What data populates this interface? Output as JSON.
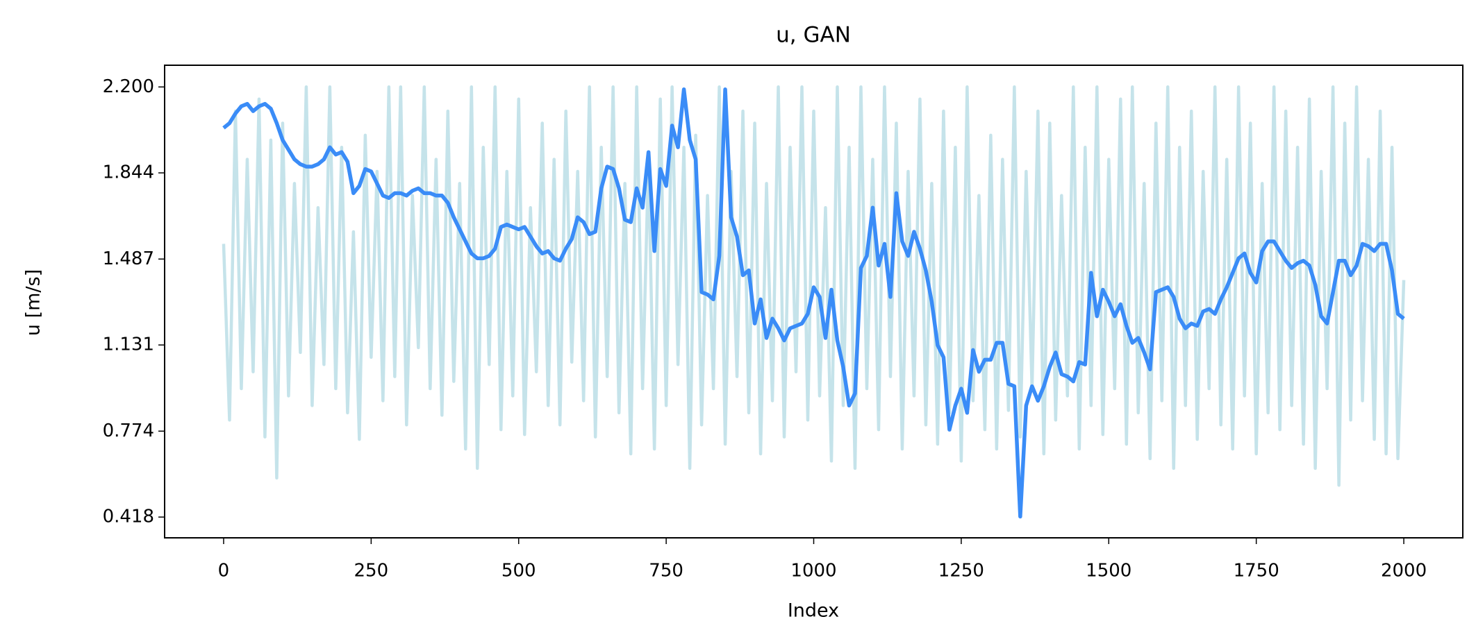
{
  "chart_data": {
    "type": "line",
    "title": "u, GAN",
    "xlabel": "Index",
    "ylabel": "u [m/s]",
    "xlim": [
      -100,
      2100
    ],
    "ylim": [
      0.332,
      2.29
    ],
    "xticks": [
      0,
      250,
      500,
      750,
      1000,
      1250,
      1500,
      1750,
      2000
    ],
    "yticks": [
      0.418,
      0.774,
      1.131,
      1.487,
      1.844,
      {
        "value": 2.2,
        "label": "2.200"
      }
    ],
    "x": [
      0,
      10,
      20,
      30,
      40,
      50,
      60,
      70,
      80,
      90,
      100,
      110,
      120,
      130,
      140,
      150,
      160,
      170,
      180,
      190,
      200,
      210,
      220,
      230,
      240,
      250,
      260,
      270,
      280,
      290,
      300,
      310,
      320,
      330,
      340,
      350,
      360,
      370,
      380,
      390,
      400,
      410,
      420,
      430,
      440,
      450,
      460,
      470,
      480,
      490,
      500,
      510,
      520,
      530,
      540,
      550,
      560,
      570,
      580,
      590,
      600,
      610,
      620,
      630,
      640,
      650,
      660,
      670,
      680,
      690,
      700,
      710,
      720,
      730,
      740,
      750,
      760,
      770,
      780,
      790,
      800,
      810,
      820,
      830,
      840,
      850,
      860,
      870,
      880,
      890,
      900,
      910,
      920,
      930,
      940,
      950,
      960,
      970,
      980,
      990,
      1000,
      1010,
      1020,
      1030,
      1040,
      1050,
      1060,
      1070,
      1080,
      1090,
      1100,
      1110,
      1120,
      1130,
      1140,
      1150,
      1160,
      1170,
      1180,
      1190,
      1200,
      1210,
      1220,
      1230,
      1240,
      1250,
      1260,
      1270,
      1280,
      1290,
      1300,
      1310,
      1320,
      1330,
      1340,
      1350,
      1360,
      1370,
      1380,
      1390,
      1400,
      1410,
      1420,
      1430,
      1440,
      1450,
      1460,
      1470,
      1480,
      1490,
      1500,
      1510,
      1520,
      1530,
      1540,
      1550,
      1560,
      1570,
      1580,
      1590,
      1600,
      1610,
      1620,
      1630,
      1640,
      1650,
      1660,
      1670,
      1680,
      1690,
      1700,
      1710,
      1720,
      1730,
      1740,
      1750,
      1760,
      1770,
      1780,
      1790,
      1800,
      1810,
      1820,
      1830,
      1840,
      1850,
      1860,
      1870,
      1880,
      1890,
      1900,
      1910,
      1920,
      1930,
      1940,
      1950,
      1960,
      1970,
      1980,
      1990,
      2000
    ],
    "series": [
      {
        "color": "#c5e3ea",
        "values": [
          1.55,
          0.82,
          2.1,
          0.95,
          1.9,
          1.02,
          2.15,
          0.75,
          1.98,
          0.58,
          2.05,
          0.92,
          1.8,
          1.1,
          2.2,
          0.88,
          1.7,
          1.05,
          2.2,
          0.95,
          1.95,
          0.85,
          1.6,
          0.74,
          2.0,
          1.08,
          1.85,
          0.9,
          2.2,
          1.0,
          2.2,
          0.8,
          1.75,
          1.12,
          2.2,
          0.95,
          1.9,
          0.84,
          2.1,
          0.98,
          1.8,
          0.7,
          2.2,
          0.62,
          1.95,
          1.05,
          2.2,
          0.78,
          1.85,
          0.92,
          2.15,
          0.76,
          1.7,
          1.02,
          2.05,
          0.88,
          1.9,
          0.8,
          2.1,
          1.06,
          1.85,
          0.9,
          2.2,
          0.75,
          1.95,
          1.0,
          2.2,
          0.85,
          1.8,
          0.68,
          2.2,
          0.95,
          1.9,
          0.7,
          2.15,
          0.88,
          2.2,
          1.05,
          1.95,
          0.62,
          2.0,
          0.8,
          1.75,
          0.95,
          2.2,
          0.72,
          1.85,
          1.0,
          2.1,
          0.85,
          2.05,
          0.68,
          1.8,
          0.9,
          2.2,
          0.75,
          1.95,
          1.02,
          2.2,
          0.82,
          2.1,
          0.92,
          1.7,
          0.65,
          2.2,
          0.88,
          1.95,
          0.62,
          2.2,
          0.95,
          1.9,
          0.78,
          2.2,
          1.0,
          2.05,
          0.7,
          1.85,
          0.92,
          2.15,
          0.8,
          1.8,
          0.72,
          2.1,
          0.85,
          1.95,
          0.65,
          2.2,
          0.9,
          1.75,
          0.78,
          2.0,
          0.7,
          1.9,
          0.86,
          2.2,
          0.75,
          1.85,
          0.95,
          2.1,
          0.68,
          2.05,
          0.82,
          1.75,
          0.92,
          2.2,
          0.7,
          1.95,
          0.88,
          2.2,
          0.76,
          1.9,
          0.95,
          2.15,
          0.72,
          2.2,
          0.85,
          1.8,
          0.66,
          2.05,
          0.9,
          2.2,
          0.62,
          1.95,
          0.88,
          2.1,
          0.74,
          1.85,
          0.95,
          2.2,
          0.8,
          1.9,
          0.7,
          2.2,
          0.92,
          2.05,
          0.68,
          1.8,
          0.85,
          2.2,
          0.78,
          2.1,
          0.88,
          1.95,
          0.72,
          2.15,
          0.62,
          1.85,
          0.95,
          2.2,
          0.55,
          2.05,
          0.82,
          2.2,
          0.9,
          1.9,
          0.74,
          2.1,
          0.68,
          1.95,
          0.66,
          1.4
        ]
      },
      {
        "color": "#3a8cf7",
        "values": [
          2.03,
          2.05,
          2.09,
          2.12,
          2.13,
          2.1,
          2.12,
          2.13,
          2.11,
          2.05,
          1.98,
          1.94,
          1.9,
          1.88,
          1.87,
          1.87,
          1.88,
          1.9,
          1.95,
          1.92,
          1.93,
          1.89,
          1.76,
          1.79,
          1.86,
          1.85,
          1.8,
          1.75,
          1.74,
          1.76,
          1.76,
          1.75,
          1.77,
          1.78,
          1.76,
          1.76,
          1.75,
          1.75,
          1.72,
          1.66,
          1.61,
          1.56,
          1.51,
          1.49,
          1.49,
          1.5,
          1.53,
          1.62,
          1.63,
          1.62,
          1.61,
          1.62,
          1.58,
          1.54,
          1.51,
          1.52,
          1.49,
          1.48,
          1.53,
          1.57,
          1.66,
          1.64,
          1.59,
          1.6,
          1.78,
          1.87,
          1.86,
          1.78,
          1.65,
          1.64,
          1.78,
          1.7,
          1.93,
          1.52,
          1.86,
          1.79,
          2.04,
          1.95,
          2.19,
          1.98,
          1.9,
          1.35,
          1.34,
          1.32,
          1.5,
          2.19,
          1.66,
          1.58,
          1.42,
          1.44,
          1.22,
          1.32,
          1.16,
          1.24,
          1.2,
          1.15,
          1.2,
          1.21,
          1.22,
          1.26,
          1.37,
          1.33,
          1.16,
          1.36,
          1.15,
          1.04,
          0.88,
          0.93,
          1.45,
          1.5,
          1.7,
          1.46,
          1.55,
          1.33,
          1.76,
          1.56,
          1.5,
          1.6,
          1.53,
          1.44,
          1.31,
          1.13,
          1.08,
          0.78,
          0.88,
          0.95,
          0.85,
          1.11,
          1.02,
          1.07,
          1.07,
          1.14,
          1.14,
          0.97,
          0.96,
          0.42,
          0.88,
          0.96,
          0.9,
          0.96,
          1.04,
          1.1,
          1.01,
          1.0,
          0.98,
          1.06,
          1.05,
          1.43,
          1.25,
          1.36,
          1.31,
          1.25,
          1.3,
          1.21,
          1.14,
          1.16,
          1.1,
          1.03,
          1.35,
          1.36,
          1.37,
          1.33,
          1.24,
          1.2,
          1.22,
          1.21,
          1.27,
          1.28,
          1.26,
          1.32,
          1.37,
          1.43,
          1.49,
          1.51,
          1.43,
          1.39,
          1.52,
          1.56,
          1.56,
          1.52,
          1.48,
          1.45,
          1.47,
          1.48,
          1.46,
          1.38,
          1.25,
          1.22,
          1.35,
          1.48,
          1.48,
          1.42,
          1.46,
          1.55,
          1.54,
          1.52,
          1.55,
          1.55,
          1.44,
          1.26,
          1.24
        ]
      }
    ]
  }
}
